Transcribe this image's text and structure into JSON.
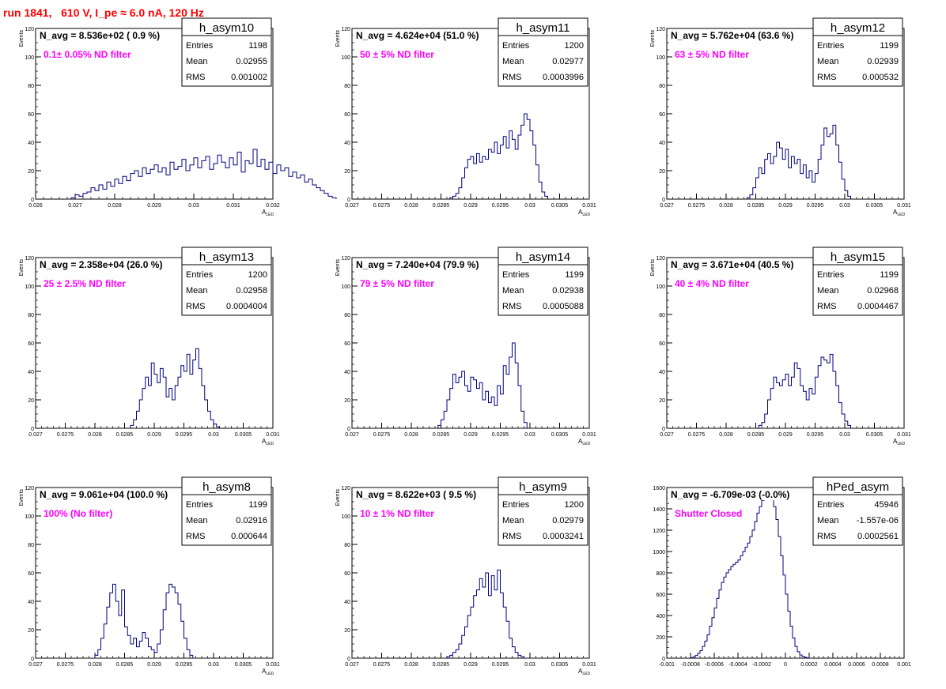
{
  "page": {
    "title": "run 1841,   610 V, I_pe ≈ 6.0 nA, 120 Hz"
  },
  "colors": {
    "histogram": "#000080",
    "annotation": "#ff00ff",
    "title": "#ff0000",
    "axis": "#000000"
  },
  "chart_data": [
    {
      "type": "bar",
      "name": "h_asym10",
      "nlabel": "N_avg = 8.536e+02 ( 0.9 %)",
      "filter": "0.1± 0.05% ND filter",
      "stats": {
        "Entries": "1198",
        "Mean": "0.02955",
        "RMS": "0.001002"
      },
      "xlabel": "A",
      "xlabel_sub": "LED",
      "ylabel": "Events",
      "xlim": [
        0.026,
        0.032
      ],
      "ylim": [
        0,
        120
      ],
      "xticks": [
        "0.026",
        "0.027",
        "0.028",
        "0.029",
        "0.03",
        "0.031",
        "0.032"
      ],
      "yticks": [
        "0",
        "20",
        "40",
        "60",
        "80",
        "100",
        "120"
      ],
      "bin_start": 0.0269,
      "bin_width": 0.0001,
      "values": [
        1,
        3,
        2,
        4,
        5,
        8,
        6,
        10,
        7,
        12,
        9,
        14,
        11,
        16,
        13,
        18,
        20,
        16,
        22,
        18,
        21,
        24,
        19,
        22,
        17,
        26,
        21,
        23,
        28,
        20,
        24,
        29,
        22,
        27,
        30,
        21,
        25,
        31,
        26,
        22,
        29,
        24,
        33,
        19,
        27,
        25,
        35,
        23,
        28,
        21,
        26,
        18,
        24,
        20,
        22,
        16,
        19,
        15,
        17,
        12,
        14,
        10,
        8,
        6,
        4,
        2,
        1
      ]
    },
    {
      "type": "bar",
      "name": "h_asym11",
      "nlabel": "N_avg = 4.624e+04 (51.0 %)",
      "filter": "50 ± 5% ND filter",
      "stats": {
        "Entries": "1200",
        "Mean": "0.02977",
        "RMS": "0.0003996"
      },
      "xlabel": "A",
      "xlabel_sub": "LED",
      "ylabel": "Events",
      "xlim": [
        0.027,
        0.031
      ],
      "ylim": [
        0,
        120
      ],
      "xticks": [
        "0.027",
        "0.0275",
        "0.028",
        "0.0285",
        "0.029",
        "0.0295",
        "0.03",
        "0.0305",
        "0.031"
      ],
      "yticks": [
        "0",
        "20",
        "40",
        "60",
        "80",
        "100",
        "120"
      ],
      "bin_start": 0.02865,
      "bin_width": 5e-05,
      "values": [
        1,
        2,
        4,
        8,
        15,
        22,
        28,
        30,
        25,
        32,
        26,
        30,
        28,
        35,
        33,
        40,
        32,
        38,
        44,
        36,
        48,
        42,
        35,
        45,
        52,
        60,
        56,
        48,
        38,
        24,
        12,
        5,
        2
      ]
    },
    {
      "type": "bar",
      "name": "h_asym12",
      "nlabel": "N_avg = 5.762e+04 (63.6 %)",
      "filter": "63 ± 5% ND filter",
      "stats": {
        "Entries": "1199",
        "Mean": "0.02939",
        "RMS": "0.000532"
      },
      "xlabel": "A",
      "xlabel_sub": "LED",
      "ylabel": "Events",
      "xlim": [
        0.027,
        0.031
      ],
      "ylim": [
        0,
        120
      ],
      "xticks": [
        "0.027",
        "0.0275",
        "0.028",
        "0.0285",
        "0.029",
        "0.0295",
        "0.03",
        "0.0305",
        "0.031"
      ],
      "yticks": [
        "0",
        "20",
        "40",
        "60",
        "80",
        "100",
        "120"
      ],
      "bin_start": 0.02835,
      "bin_width": 5e-05,
      "values": [
        1,
        3,
        8,
        15,
        22,
        18,
        28,
        32,
        25,
        30,
        40,
        36,
        28,
        35,
        22,
        30,
        25,
        28,
        18,
        24,
        15,
        20,
        12,
        18,
        28,
        38,
        50,
        44,
        46,
        52,
        38,
        26,
        14,
        6,
        2
      ]
    },
    {
      "type": "bar",
      "name": "h_asym13",
      "nlabel": "N_avg = 2.358e+04 (26.0 %)",
      "filter": "25 ± 2.5% ND filter",
      "stats": {
        "Entries": "1200",
        "Mean": "0.02958",
        "RMS": "0.0004004"
      },
      "xlabel": "A",
      "xlabel_sub": "LED",
      "ylabel": "Events",
      "xlim": [
        0.027,
        0.031
      ],
      "ylim": [
        0,
        120
      ],
      "xticks": [
        "0.027",
        "0.0275",
        "0.028",
        "0.0285",
        "0.029",
        "0.0295",
        "0.03",
        "0.0305",
        "0.031"
      ],
      "yticks": [
        "0",
        "20",
        "40",
        "60",
        "80",
        "100",
        "120"
      ],
      "bin_start": 0.0286,
      "bin_width": 5e-05,
      "values": [
        2,
        6,
        12,
        20,
        28,
        36,
        30,
        46,
        38,
        32,
        42,
        36,
        22,
        28,
        20,
        30,
        36,
        44,
        40,
        52,
        38,
        48,
        56,
        42,
        30,
        20,
        12,
        6,
        3,
        1
      ]
    },
    {
      "type": "bar",
      "name": "h_asym14",
      "nlabel": "N_avg = 7.240e+04 (79.9 %)",
      "filter": "79 ± 5% ND filter",
      "stats": {
        "Entries": "1199",
        "Mean": "0.02938",
        "RMS": "0.0005088"
      },
      "xlabel": "A",
      "xlabel_sub": "LED",
      "ylabel": "Events",
      "xlim": [
        0.027,
        0.031
      ],
      "ylim": [
        0,
        120
      ],
      "xticks": [
        "0.027",
        "0.0275",
        "0.028",
        "0.0285",
        "0.029",
        "0.0295",
        "0.03",
        "0.0305",
        "0.031"
      ],
      "yticks": [
        "0",
        "20",
        "40",
        "60",
        "80",
        "100",
        "120"
      ],
      "bin_start": 0.02845,
      "bin_width": 5e-05,
      "values": [
        2,
        6,
        12,
        20,
        28,
        38,
        32,
        36,
        40,
        30,
        26,
        36,
        34,
        28,
        32,
        20,
        26,
        18,
        22,
        16,
        30,
        24,
        44,
        38,
        50,
        60,
        46,
        30,
        12,
        4
      ]
    },
    {
      "type": "bar",
      "name": "h_asym15",
      "nlabel": "N_avg = 3.671e+04 (40.5 %)",
      "filter": "40 ± 4% ND filter",
      "stats": {
        "Entries": "1199",
        "Mean": "0.02968",
        "RMS": "0.0004467"
      },
      "xlabel": "A",
      "xlabel_sub": "LED",
      "ylabel": "Events",
      "xlim": [
        0.027,
        0.031
      ],
      "ylim": [
        0,
        120
      ],
      "xticks": [
        "0.027",
        "0.0275",
        "0.028",
        "0.0285",
        "0.029",
        "0.0295",
        "0.03",
        "0.0305",
        "0.031"
      ],
      "yticks": [
        "0",
        "20",
        "40",
        "60",
        "80",
        "100",
        "120"
      ],
      "bin_start": 0.02855,
      "bin_width": 5e-05,
      "values": [
        2,
        4,
        10,
        20,
        28,
        36,
        32,
        30,
        34,
        38,
        30,
        36,
        46,
        42,
        30,
        26,
        20,
        28,
        24,
        36,
        44,
        50,
        48,
        46,
        52,
        40,
        30,
        18,
        10,
        5,
        2
      ]
    },
    {
      "type": "bar",
      "name": "h_asym8",
      "nlabel": "N_avg = 9.061e+04 (100.0 %)",
      "filter": "100% (No filter)",
      "stats": {
        "Entries": "1199",
        "Mean": "0.02916",
        "RMS": "0.000644"
      },
      "xlabel": "A",
      "xlabel_sub": "LED",
      "ylabel": "Events",
      "xlim": [
        0.027,
        0.031
      ],
      "ylim": [
        0,
        120
      ],
      "xticks": [
        "0.027",
        "0.0275",
        "0.028",
        "0.0285",
        "0.029",
        "0.0295",
        "0.03",
        "0.0305",
        "0.031"
      ],
      "yticks": [
        "0",
        "20",
        "40",
        "60",
        "80",
        "100",
        "120"
      ],
      "bin_start": 0.028,
      "bin_width": 5e-05,
      "values": [
        2,
        6,
        14,
        24,
        36,
        46,
        52,
        40,
        30,
        48,
        22,
        16,
        10,
        14,
        8,
        12,
        18,
        14,
        8,
        6,
        4,
        10,
        20,
        34,
        46,
        52,
        50,
        46,
        38,
        26,
        14,
        6,
        2
      ]
    },
    {
      "type": "bar",
      "name": "h_asym9",
      "nlabel": "N_avg = 8.622e+03 ( 9.5 %)",
      "filter": "10 ± 1% ND filter",
      "stats": {
        "Entries": "1200",
        "Mean": "0.02979",
        "RMS": "0.0003241"
      },
      "xlabel": "A",
      "xlabel_sub": "LED",
      "ylabel": "Events",
      "xlim": [
        0.027,
        0.031
      ],
      "ylim": [
        0,
        120
      ],
      "xticks": [
        "0.027",
        "0.0275",
        "0.028",
        "0.0285",
        "0.029",
        "0.0295",
        "0.03",
        "0.0305",
        "0.031"
      ],
      "yticks": [
        "0",
        "20",
        "40",
        "60",
        "80",
        "100",
        "120"
      ],
      "bin_start": 0.0286,
      "bin_width": 5e-05,
      "values": [
        1,
        2,
        4,
        6,
        10,
        16,
        22,
        30,
        36,
        44,
        48,
        56,
        50,
        60,
        44,
        58,
        48,
        62,
        46,
        36,
        26,
        14,
        8,
        4,
        2,
        1
      ]
    },
    {
      "type": "bar",
      "name": "hPed_asym",
      "nlabel": "N_avg = -6.709e-03 (-0.0%)",
      "filter": "Shutter Closed",
      "stats": {
        "Entries": "45946",
        "Mean": "-1.557e-06",
        "RMS": "0.0002561"
      },
      "xlabel": "",
      "xlabel_sub": "",
      "ylabel": "",
      "xlim": [
        -0.001,
        0.001
      ],
      "ylim": [
        0,
        1600
      ],
      "xticks": [
        "-0.001",
        "-0.0008",
        "-0.0006",
        "-0.0004",
        "-0.0002",
        "0",
        "0.0002",
        "0.0004",
        "0.0006",
        "0.0008",
        "0.001"
      ],
      "yticks": [
        "0",
        "200",
        "400",
        "600",
        "800",
        "1000",
        "1200",
        "1400",
        "1600"
      ],
      "bin_start": -0.0008,
      "bin_width": 2e-05,
      "values": [
        5,
        12,
        25,
        45,
        70,
        110,
        160,
        220,
        300,
        380,
        470,
        560,
        640,
        710,
        760,
        800,
        830,
        860,
        880,
        900,
        920,
        960,
        1000,
        1040,
        1080,
        1140,
        1200,
        1280,
        1360,
        1420,
        1480,
        1520,
        1560,
        1540,
        1500,
        1420,
        1300,
        1140,
        960,
        780,
        600,
        440,
        300,
        190,
        110,
        60,
        30,
        15,
        8,
        3
      ]
    }
  ]
}
